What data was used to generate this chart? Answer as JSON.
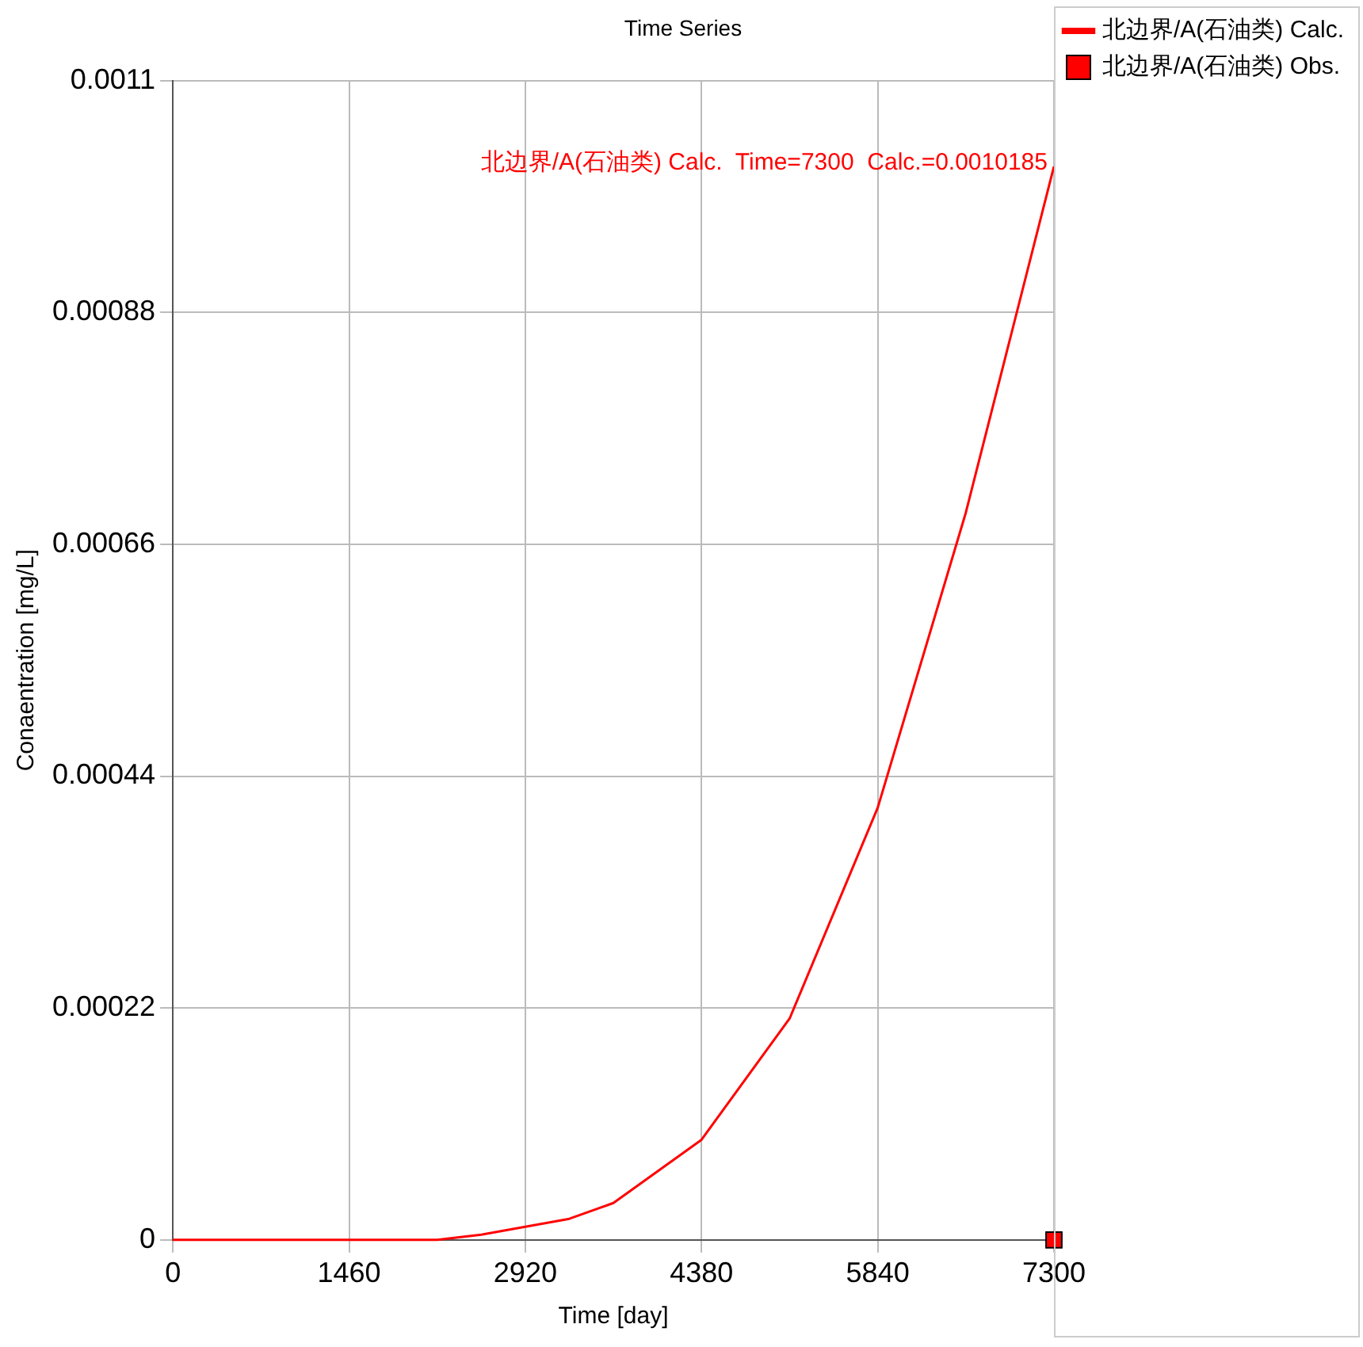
{
  "chart_data": {
    "type": "line",
    "title": "Time Series",
    "xlabel": "Time [day]",
    "ylabel": "Conaentration [mg/L]",
    "annotations": [
      "北边界/A(石油类) Calc.  Time=7300  Calc.=0.0010185"
    ],
    "series": [
      {
        "name": "北边界/A(石油类) Calc.",
        "color": "#ff0000",
        "marker": "none",
        "x": [
          0,
          1460,
          2190,
          2555,
          3285,
          3650,
          4380,
          5110,
          5840,
          6570,
          7300
        ],
        "values": [
          0,
          0,
          0,
          5e-06,
          2e-05,
          3.5e-05,
          9.5e-05,
          0.00021,
          0.00041,
          0.00069,
          0.0010185
        ]
      },
      {
        "name": "北边界/A(石油类) Obs.",
        "type": "scatter",
        "color": "#ff0000",
        "marker": "square",
        "x": [
          7300
        ],
        "values": [
          0
        ]
      }
    ],
    "xlim": [
      0,
      7300
    ],
    "xticks": [
      0,
      1460,
      2920,
      4380,
      5840,
      7300
    ],
    "ylim": [
      0,
      0.0011
    ],
    "yticks": [
      0,
      0.00022,
      0.00044,
      0.00066,
      0.00088,
      0.0011
    ],
    "grid": true,
    "legend": "top right"
  }
}
